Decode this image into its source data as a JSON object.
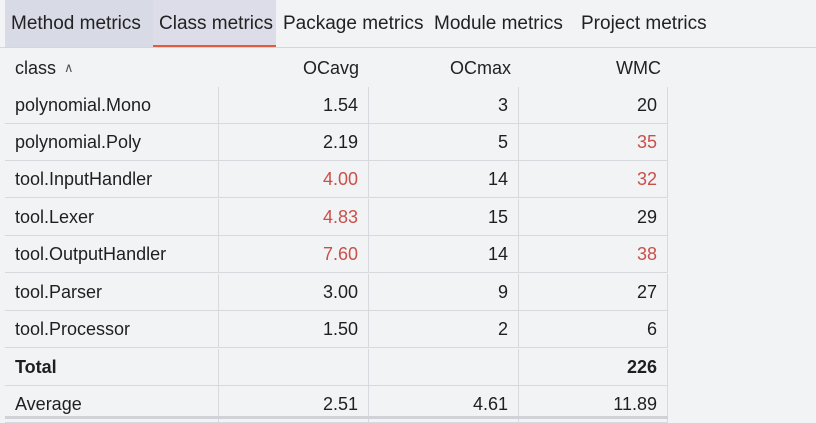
{
  "tabs": [
    {
      "label": "Method metrics",
      "state": "hovered"
    },
    {
      "label": "Class metrics",
      "state": "active"
    },
    {
      "label": "Package metrics",
      "state": "normal"
    },
    {
      "label": "Module metrics",
      "state": "normal"
    },
    {
      "label": "Project metrics",
      "state": "normal"
    }
  ],
  "table": {
    "headers": [
      "class",
      "OCavg",
      "OCmax",
      "WMC"
    ],
    "sort_icon": "chevron-up-icon",
    "rows": [
      {
        "cells": [
          "polynomial.Mono",
          "1.54",
          "3",
          "20"
        ],
        "warn": [
          false,
          false,
          false,
          false
        ]
      },
      {
        "cells": [
          "polynomial.Poly",
          "2.19",
          "5",
          "35"
        ],
        "warn": [
          false,
          false,
          false,
          true
        ]
      },
      {
        "cells": [
          "tool.InputHandler",
          "4.00",
          "14",
          "32"
        ],
        "warn": [
          false,
          true,
          false,
          true
        ]
      },
      {
        "cells": [
          "tool.Lexer",
          "4.83",
          "15",
          "29"
        ],
        "warn": [
          false,
          true,
          false,
          false
        ]
      },
      {
        "cells": [
          "tool.OutputHandler",
          "7.60",
          "14",
          "38"
        ],
        "warn": [
          false,
          true,
          false,
          true
        ]
      },
      {
        "cells": [
          "tool.Parser",
          "3.00",
          "9",
          "27"
        ],
        "warn": [
          false,
          false,
          false,
          false
        ]
      },
      {
        "cells": [
          "tool.Processor",
          "1.50",
          "2",
          "6"
        ],
        "warn": [
          false,
          false,
          false,
          false
        ]
      }
    ],
    "total": {
      "cells": [
        "Total",
        "",
        "",
        "226"
      ]
    },
    "average": {
      "cells": [
        "Average",
        "2.51",
        "4.61",
        "11.89"
      ]
    }
  },
  "colors": {
    "warning_text": "#c9504a",
    "active_tab_underline": "#e25b3f",
    "background": "#f2f3f5"
  }
}
